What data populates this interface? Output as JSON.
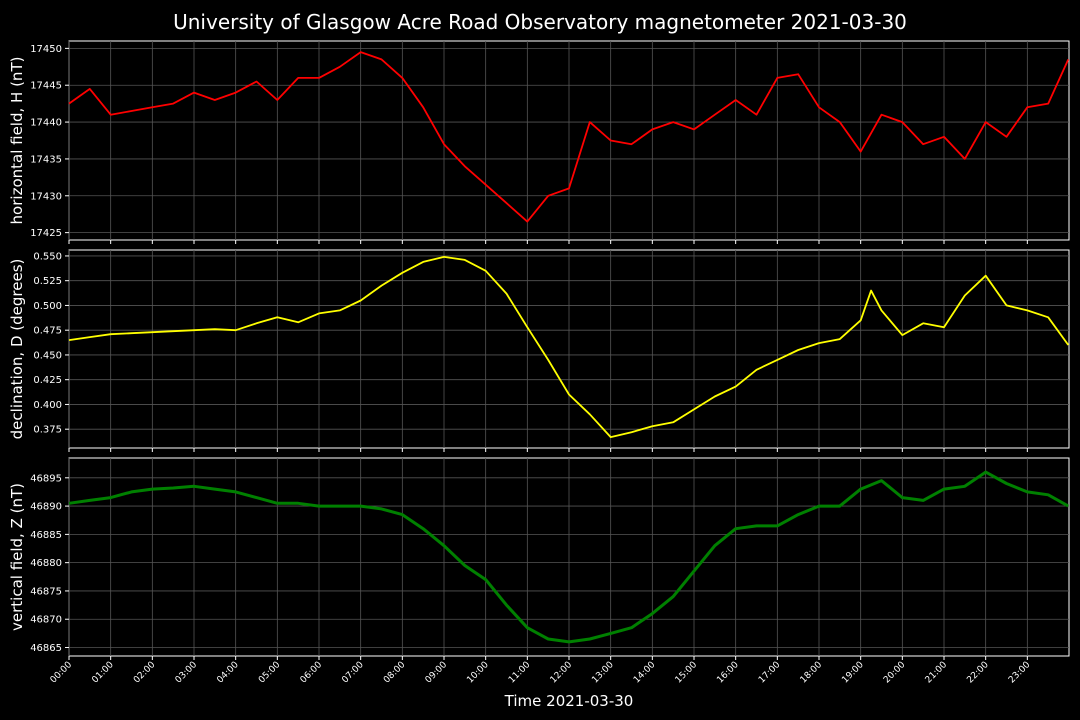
{
  "title": "University of Glasgow Acre Road Observatory magnetometer 2021-03-30",
  "xlabel": "Time 2021-03-30",
  "x_tick_labels": [
    "00:00",
    "01:00",
    "02:00",
    "03:00",
    "04:00",
    "05:00",
    "06:00",
    "07:00",
    "08:00",
    "09:00",
    "10:00",
    "11:00",
    "12:00",
    "13:00",
    "14:00",
    "15:00",
    "16:00",
    "17:00",
    "18:00",
    "19:00",
    "20:00",
    "21:00",
    "22:00",
    "23:00"
  ],
  "colors": {
    "background": "#000000",
    "H": "#ff0000",
    "D": "#ffff00",
    "Z": "#008000",
    "grid": "#555555",
    "text": "#ffffff"
  },
  "chart_data": [
    {
      "type": "line",
      "id": "H",
      "ylabel": "horizontal field, H (nT)",
      "ylim": [
        17424,
        17451
      ],
      "yticks": [
        17425,
        17430,
        17435,
        17440,
        17445,
        17450
      ],
      "ytick_labels": [
        "17425",
        "17430",
        "17435",
        "17440",
        "17445",
        "17450"
      ],
      "grid": true,
      "x": [
        "00:00",
        "00:30",
        "01:00",
        "01:30",
        "02:00",
        "02:30",
        "03:00",
        "03:30",
        "04:00",
        "04:30",
        "05:00",
        "05:30",
        "06:00",
        "06:30",
        "07:00",
        "07:30",
        "08:00",
        "08:30",
        "09:00",
        "09:30",
        "10:00",
        "10:30",
        "11:00",
        "11:30",
        "12:00",
        "12:30",
        "13:00",
        "13:30",
        "14:00",
        "14:30",
        "15:00",
        "15:30",
        "16:00",
        "16:30",
        "17:00",
        "17:30",
        "18:00",
        "18:30",
        "19:00",
        "19:30",
        "20:00",
        "20:30",
        "21:00",
        "21:30",
        "22:00",
        "22:30",
        "23:00",
        "23:30",
        "23:59"
      ],
      "values": [
        17442.5,
        17444.5,
        17441,
        17441.5,
        17442,
        17442.5,
        17444,
        17443,
        17444,
        17445.5,
        17443,
        17446,
        17446,
        17447.5,
        17449.5,
        17448.5,
        17446,
        17442,
        17437,
        17434,
        17431.5,
        17429,
        17426.5,
        17430,
        17431,
        17440,
        17437.5,
        17437,
        17439,
        17440,
        17439,
        17441,
        17443,
        17441,
        17446,
        17446.5,
        17442,
        17440,
        17436,
        17441,
        17440,
        17437,
        17438,
        17435,
        17440,
        17438,
        17442,
        17442.5,
        17448.5
      ]
    },
    {
      "type": "line",
      "id": "D",
      "ylabel": "declination, D (degrees)",
      "ylim": [
        0.356,
        0.556
      ],
      "yticks": [
        0.375,
        0.4,
        0.425,
        0.45,
        0.475,
        0.5,
        0.525,
        0.55
      ],
      "ytick_labels": [
        "0.375",
        "0.400",
        "0.425",
        "0.450",
        "0.475",
        "0.500",
        "0.525",
        "0.550"
      ],
      "grid": true,
      "x": [
        "00:00",
        "00:30",
        "01:00",
        "01:30",
        "02:00",
        "02:30",
        "03:00",
        "03:30",
        "04:00",
        "04:30",
        "05:00",
        "05:30",
        "06:00",
        "06:30",
        "07:00",
        "07:30",
        "08:00",
        "08:30",
        "09:00",
        "09:30",
        "10:00",
        "10:30",
        "11:00",
        "11:30",
        "12:00",
        "12:30",
        "13:00",
        "13:30",
        "14:00",
        "14:30",
        "15:00",
        "15:30",
        "16:00",
        "16:30",
        "17:00",
        "17:30",
        "18:00",
        "18:30",
        "19:00",
        "19:15",
        "19:30",
        "20:00",
        "20:30",
        "21:00",
        "21:30",
        "22:00",
        "22:30",
        "23:00",
        "23:30",
        "23:59"
      ],
      "values": [
        0.465,
        0.468,
        0.471,
        0.472,
        0.473,
        0.474,
        0.475,
        0.476,
        0.475,
        0.482,
        0.488,
        0.483,
        0.492,
        0.495,
        0.505,
        0.52,
        0.533,
        0.544,
        0.549,
        0.546,
        0.535,
        0.512,
        0.478,
        0.445,
        0.41,
        0.39,
        0.367,
        0.372,
        0.378,
        0.382,
        0.395,
        0.408,
        0.418,
        0.435,
        0.445,
        0.455,
        0.462,
        0.466,
        0.485,
        0.515,
        0.495,
        0.47,
        0.482,
        0.478,
        0.51,
        0.53,
        0.5,
        0.495,
        0.488,
        0.46
      ]
    },
    {
      "type": "line",
      "id": "Z",
      "ylabel": "vertical field, Z (nT)",
      "ylim": [
        46863.5,
        46898.5
      ],
      "yticks": [
        46865,
        46870,
        46875,
        46880,
        46885,
        46890,
        46895
      ],
      "ytick_labels": [
        "46865",
        "46870",
        "46875",
        "46880",
        "46885",
        "46890",
        "46895"
      ],
      "grid": true,
      "x": [
        "00:00",
        "00:30",
        "01:00",
        "01:30",
        "02:00",
        "02:30",
        "03:00",
        "03:30",
        "04:00",
        "04:30",
        "05:00",
        "05:30",
        "06:00",
        "06:30",
        "07:00",
        "07:30",
        "08:00",
        "08:30",
        "09:00",
        "09:30",
        "10:00",
        "10:30",
        "11:00",
        "11:30",
        "12:00",
        "12:30",
        "13:00",
        "13:30",
        "14:00",
        "14:30",
        "15:00",
        "15:30",
        "16:00",
        "16:30",
        "17:00",
        "17:30",
        "18:00",
        "18:30",
        "19:00",
        "19:30",
        "20:00",
        "20:30",
        "21:00",
        "21:30",
        "22:00",
        "22:30",
        "23:00",
        "23:30",
        "23:59"
      ],
      "values": [
        46890.5,
        46891,
        46891.5,
        46892.5,
        46893,
        46893.2,
        46893.5,
        46893,
        46892.5,
        46891.5,
        46890.5,
        46890.5,
        46890,
        46890,
        46890,
        46889.5,
        46888.5,
        46886,
        46883,
        46879.5,
        46877,
        46872.5,
        46868.5,
        46866.5,
        46866,
        46866.5,
        46867.5,
        46868.5,
        46871,
        46874,
        46878.5,
        46883,
        46886,
        46886.5,
        46886.5,
        46888.5,
        46890,
        46890,
        46893,
        46894.5,
        46891.5,
        46891,
        46893,
        46893.5,
        46896,
        46894,
        46892.5,
        46892,
        46890
      ]
    }
  ]
}
